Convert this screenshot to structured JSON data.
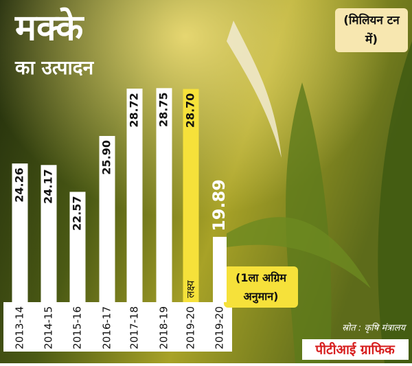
{
  "chart_data": {
    "type": "bar",
    "title": "मक्के",
    "subtitle": "का उत्पादन",
    "unit": "(मिलियन टन में)",
    "categories": [
      "2013-14",
      "2014-15",
      "2015-16",
      "2016-17",
      "2017-18",
      "2018-19",
      "2019-20",
      "2019-20"
    ],
    "values": [
      24.26,
      24.17,
      22.57,
      25.9,
      28.72,
      28.75,
      28.7,
      19.89
    ],
    "value_labels": [
      "24.26",
      "24.17",
      "22.57",
      "25.90",
      "28.72",
      "28.75",
      "28.70",
      "19.89"
    ],
    "colors": [
      "#ffffff",
      "#ffffff",
      "#ffffff",
      "#ffffff",
      "#ffffff",
      "#ffffff",
      "#f6e13a",
      "#ffffff"
    ],
    "ylim": [
      16,
      34
    ],
    "annotations": [
      "लक्ष्य",
      "(1ला अग्रिम अनुमान)"
    ],
    "source": "स्रोत : कृषि मंत्रालय",
    "credit": "पीटीआई ग्राफिक"
  }
}
